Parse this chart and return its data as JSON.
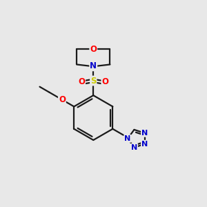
{
  "bg_color": "#e8e8e8",
  "bond_color": "#1a1a1a",
  "line_width": 1.6,
  "atom_colors": {
    "O": "#ff0000",
    "N": "#0000cc",
    "S": "#cccc00",
    "C": "#1a1a1a"
  },
  "font_size_atom": 8.5,
  "figsize": [
    3.0,
    3.0
  ],
  "dpi": 100
}
